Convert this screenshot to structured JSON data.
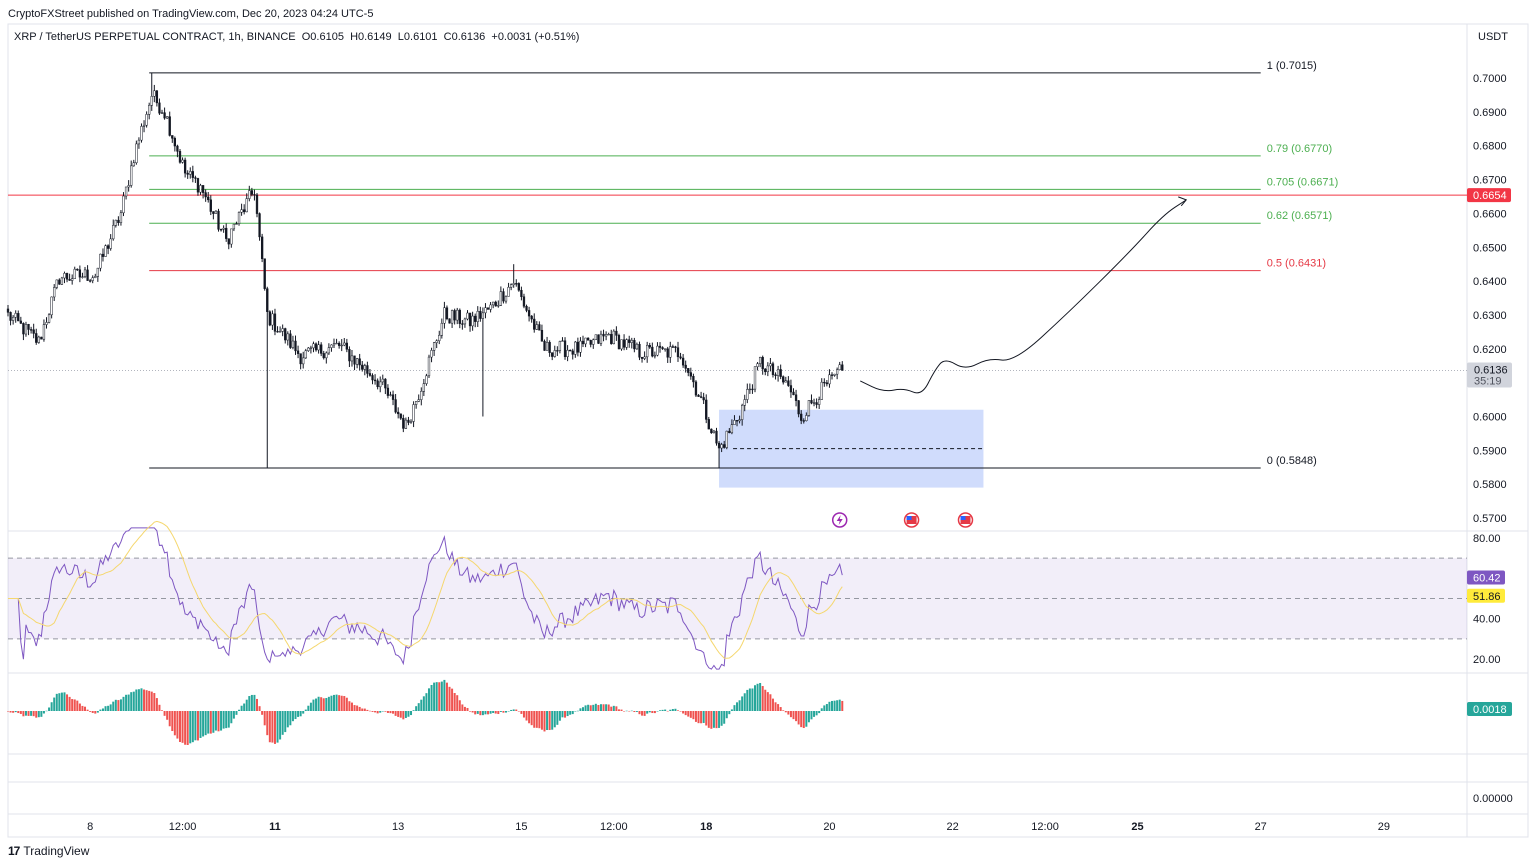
{
  "publisher": "CryptoFXStreet published on TradingView.com, Dec 20, 2023 04:24 UTC-5",
  "legend": {
    "symbol": "XRP / TetherUS PERPETUAL CONTRACT, 1h, BINANCE",
    "open": "O0.6105",
    "high": "H0.6149",
    "low": "L0.6101",
    "close": "C0.6136",
    "change": "+0.0031 (+0.51%)"
  },
  "currency": "USDT",
  "brand": "TradingView",
  "colors": {
    "up": "#ffffff",
    "down": "#131722",
    "fib_green": "#4caf50",
    "fib_red": "#e53945",
    "price_red": "#f23645",
    "box": "#c8d6fb",
    "rsi": "#7e57c2",
    "rsi_ma": "#f5d76e",
    "hist_up": "#26a69a",
    "hist_down": "#ef5350"
  },
  "chart_data": {
    "type": "candlestick",
    "timeframe": "1h",
    "first_bar": "Dec 6 16:00",
    "bars": 326,
    "ylim": [
      0.565,
      0.708
    ],
    "price_ticks": [
      "0.7000",
      "0.6900",
      "0.6800",
      "0.6700",
      "0.6600",
      "0.6500",
      "0.6400",
      "0.6300",
      "0.6200",
      "0.6000",
      "0.5900",
      "0.5800",
      "0.5700"
    ],
    "time_ticks": [
      {
        "label": "8",
        "hour": 32
      },
      {
        "label": "12:00",
        "hour": 68
      },
      {
        "label": "11",
        "hour": 104,
        "bold": true
      },
      {
        "label": "13",
        "hour": 152
      },
      {
        "label": "15",
        "hour": 200
      },
      {
        "label": "12:00",
        "hour": 236
      },
      {
        "label": "18",
        "hour": 272,
        "bold": true
      },
      {
        "label": "20",
        "hour": 320
      },
      {
        "label": "22",
        "hour": 368
      },
      {
        "label": "12:00",
        "hour": 404
      },
      {
        "label": "25",
        "hour": 440,
        "bold": true
      },
      {
        "label": "27",
        "hour": 488
      },
      {
        "label": "29",
        "hour": 536
      }
    ],
    "close_path": [
      [
        0,
        0.63
      ],
      [
        12,
        0.622
      ],
      [
        20,
        0.641
      ],
      [
        34,
        0.642
      ],
      [
        44,
        0.66
      ],
      [
        49,
        0.677
      ],
      [
        56,
        0.695
      ],
      [
        61,
        0.69
      ],
      [
        69,
        0.672
      ],
      [
        75,
        0.668
      ],
      [
        85,
        0.652
      ],
      [
        96,
        0.667
      ],
      [
        101,
        0.63
      ],
      [
        114,
        0.618
      ],
      [
        129,
        0.621
      ],
      [
        145,
        0.61
      ],
      [
        155,
        0.597
      ],
      [
        160,
        0.607
      ],
      [
        170,
        0.63
      ],
      [
        180,
        0.628
      ],
      [
        188,
        0.632
      ],
      [
        197,
        0.64
      ],
      [
        209,
        0.62
      ],
      [
        223,
        0.62
      ],
      [
        234,
        0.624
      ],
      [
        246,
        0.619
      ],
      [
        262,
        0.619
      ],
      [
        270,
        0.605
      ],
      [
        277,
        0.59
      ],
      [
        285,
        0.601
      ],
      [
        293,
        0.616
      ],
      [
        304,
        0.609
      ],
      [
        309,
        0.6
      ],
      [
        316,
        0.607
      ],
      [
        325,
        0.6136
      ]
    ],
    "wicks": [
      {
        "hour": 12,
        "low": 0.6215
      },
      {
        "hour": 56,
        "high": 0.7015
      },
      {
        "hour": 101,
        "low": 0.5848
      },
      {
        "hour": 185,
        "low": 0.6
      },
      {
        "hour": 197,
        "high": 0.645
      },
      {
        "hour": 277,
        "low": 0.5848
      }
    ],
    "last_price": {
      "value": "0.6136",
      "countdown": "35:19"
    },
    "horizontal_line": {
      "value": 0.6654,
      "label": "0.6654"
    },
    "fib_levels": [
      {
        "ratio": "1",
        "value": 0.7015,
        "label": "1 (0.7015)",
        "color": "#131722"
      },
      {
        "ratio": "0.79",
        "value": 0.677,
        "label": "0.79 (0.6770)",
        "color": "#4caf50"
      },
      {
        "ratio": "0.705",
        "value": 0.6671,
        "label": "0.705 (0.6671)",
        "color": "#4caf50"
      },
      {
        "ratio": "0.62",
        "value": 0.6571,
        "label": "0.62 (0.6571)",
        "color": "#4caf50"
      },
      {
        "ratio": "0.5",
        "value": 0.6431,
        "label": "0.5 (0.6431)",
        "color": "#e53945"
      },
      {
        "ratio": "0",
        "value": 0.5848,
        "label": "0 (0.5848)",
        "color": "#131722"
      }
    ],
    "fib_range_hours": [
      55,
      488
    ],
    "demand_box": {
      "from_hour": 277,
      "to_hour": 380,
      "top": 0.602,
      "bottom": 0.579,
      "mid": 0.5905
    },
    "projection": [
      [
        332,
        0.6105
      ],
      [
        341,
        0.6072
      ],
      [
        349,
        0.6084
      ],
      [
        356,
        0.6061
      ],
      [
        361,
        0.6137
      ],
      [
        365,
        0.6173
      ],
      [
        373,
        0.6137
      ],
      [
        382,
        0.6173
      ],
      [
        392,
        0.6161
      ],
      [
        413,
        0.6306
      ],
      [
        437,
        0.6486
      ],
      [
        450,
        0.6595
      ],
      [
        459,
        0.664
      ]
    ],
    "events": [
      {
        "hour": 324,
        "type": "lightning"
      },
      {
        "hour": 352,
        "type": "us-flag"
      },
      {
        "hour": 373,
        "type": "us-flag"
      }
    ],
    "rsi": {
      "ticks": [
        "80.00",
        "40.00",
        "20.00"
      ],
      "bands": [
        70,
        50,
        30
      ],
      "value": "60.42",
      "ma_value": "51.86"
    },
    "macd": {
      "value": "0.0018"
    },
    "empty_pane": {
      "tick": "0.00000"
    }
  }
}
